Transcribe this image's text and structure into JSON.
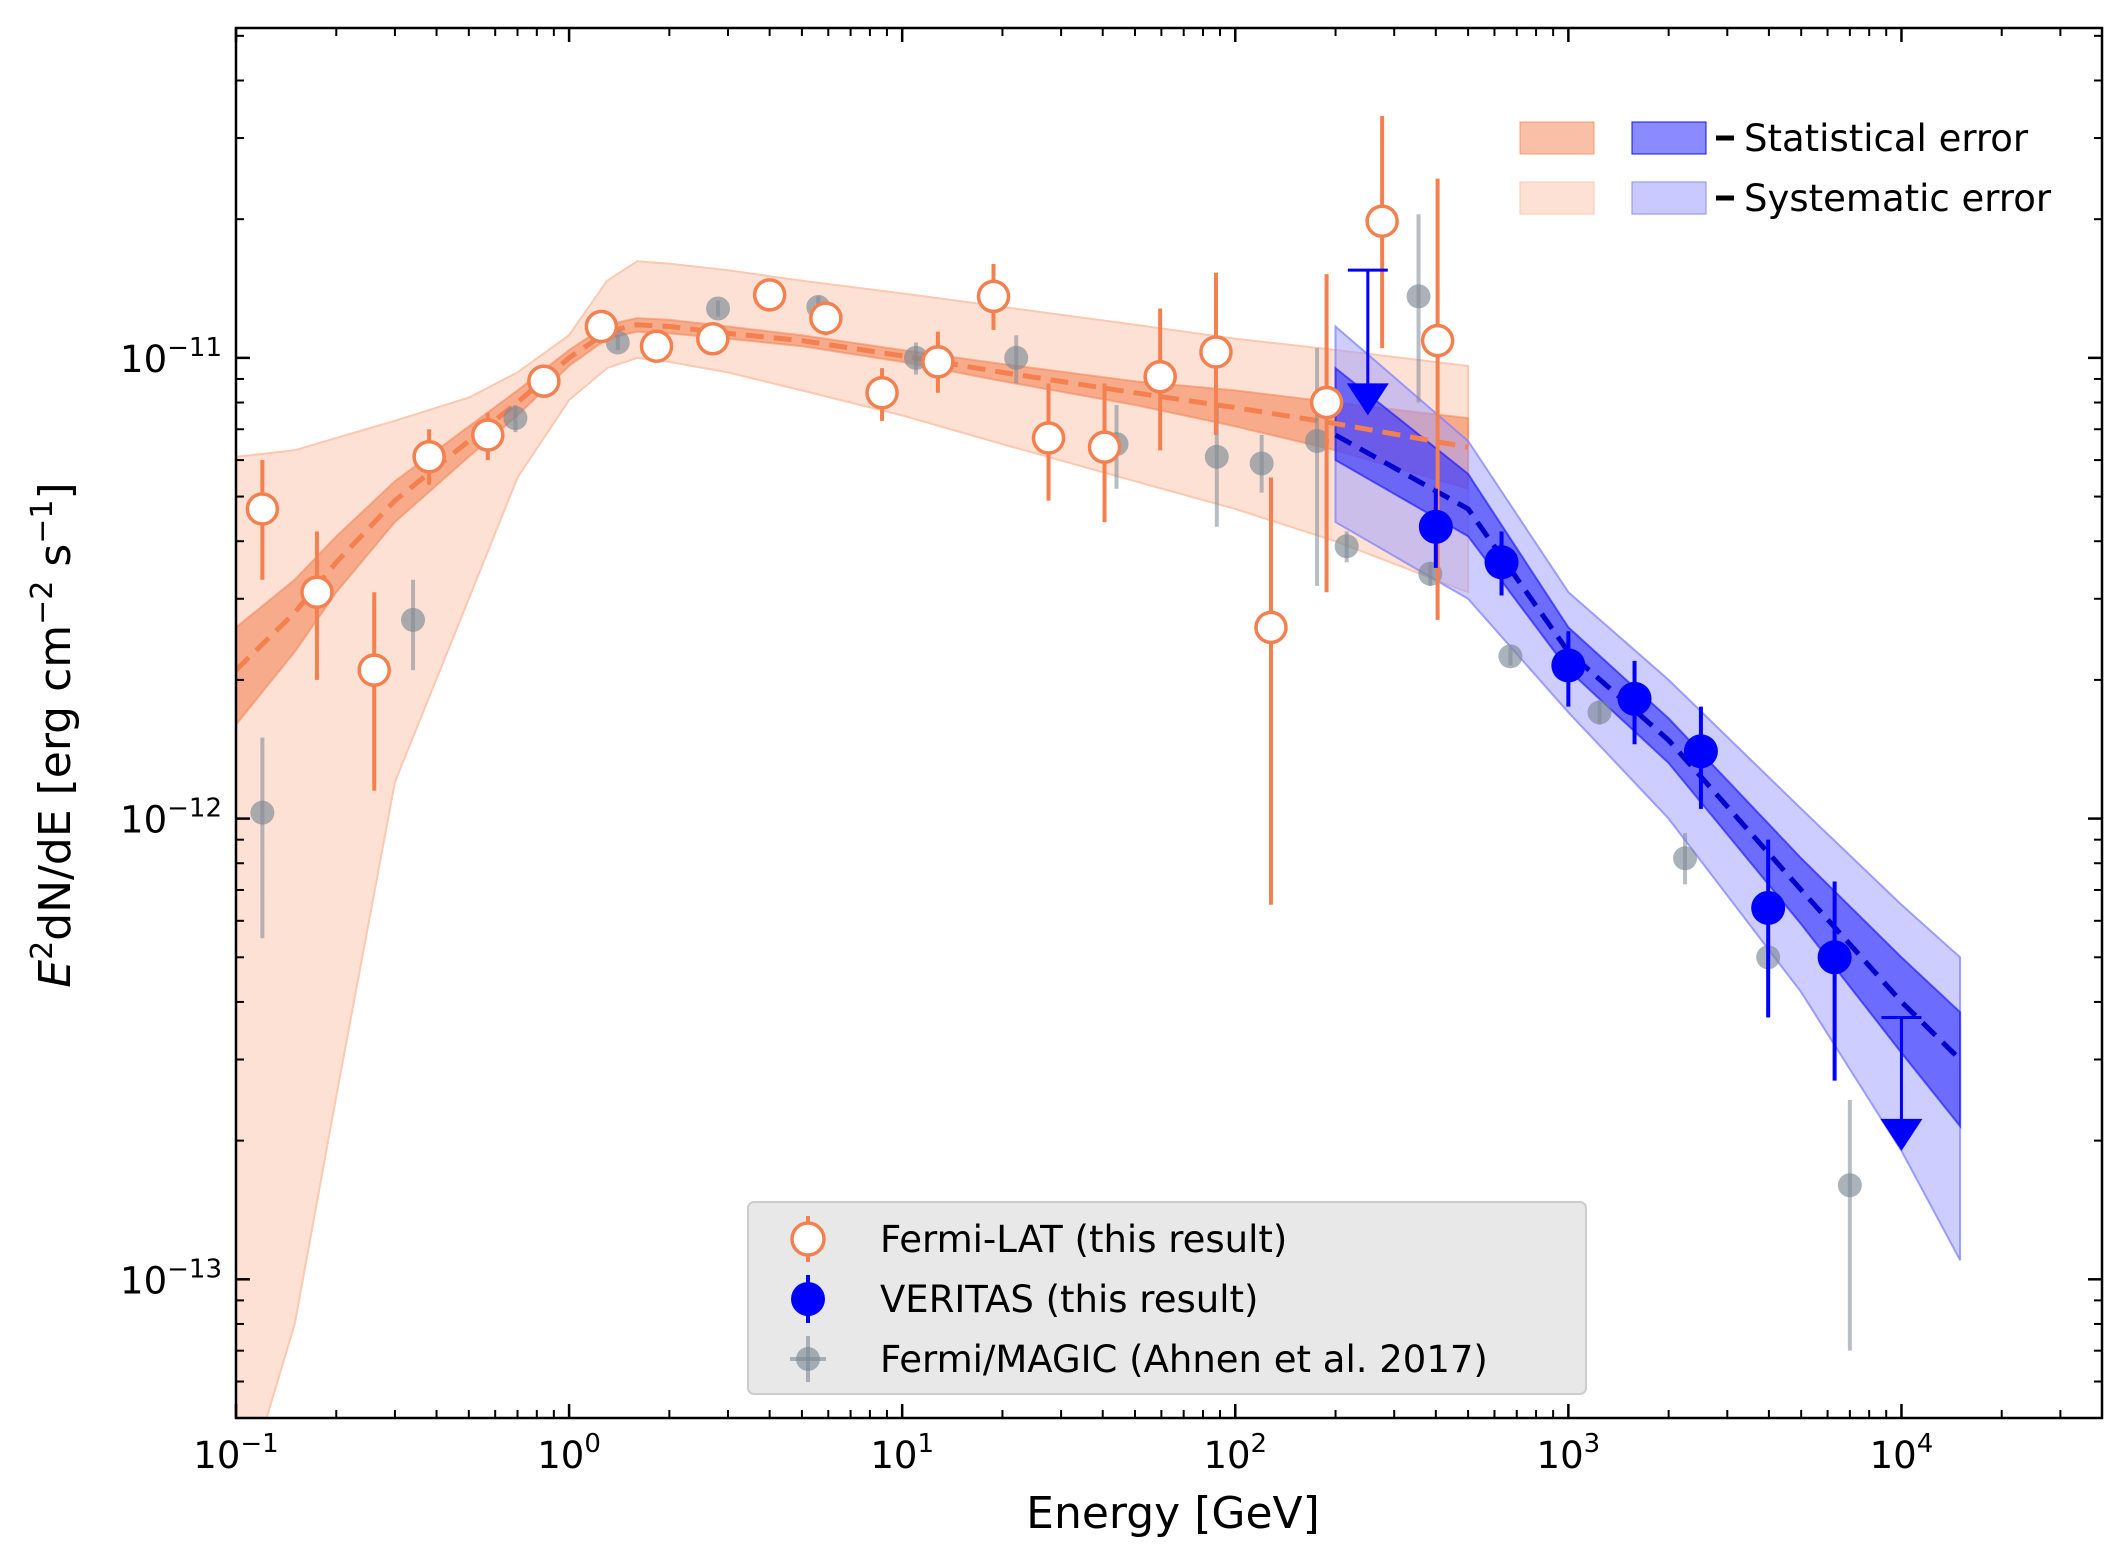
{
  "chart_data": {
    "type": "scatter",
    "xscale": "log",
    "yscale": "log",
    "xlim": [
      0.1,
      40000
    ],
    "ylim": [
      5e-14,
      5.2e-11
    ],
    "xlabel": "Energy [GeV]",
    "ylabel_main": "E",
    "ylabel_rest": "dN/dE [erg cm",
    "ylabel_unit_s": " s",
    "ylabel_close": "]",
    "sup_2": "2",
    "sup_minus2": "−2",
    "sup_minus1": "−1",
    "x_ticks": [
      {
        "value": 0.1,
        "base": "10",
        "exp": "−1"
      },
      {
        "value": 1,
        "base": "10",
        "exp": "0"
      },
      {
        "value": 10,
        "base": "10",
        "exp": "1"
      },
      {
        "value": 100,
        "base": "10",
        "exp": "2"
      },
      {
        "value": 1000,
        "base": "10",
        "exp": "3"
      },
      {
        "value": 10000,
        "base": "10",
        "exp": "4"
      }
    ],
    "y_ticks": [
      {
        "value": 1e-13,
        "base": "10",
        "exp": "−13"
      },
      {
        "value": 1e-12,
        "base": "10",
        "exp": "−12"
      },
      {
        "value": 1e-11,
        "base": "10",
        "exp": "−11"
      }
    ],
    "colors": {
      "fermi": "#f4804f",
      "veritas": "#0000ff",
      "magic": "#7d8895",
      "fermi_stat_band": "#f4804f",
      "fermi_sys_band": "#fcc8b0",
      "veritas_stat_band": "#2b2bff",
      "veritas_sys_band": "#9c9cff"
    },
    "series": [
      {
        "name": "Fermi-LAT (this result)",
        "marker": "open-circle",
        "points": [
          {
            "x": 0.12,
            "y": 4.7e-12,
            "lo": 3.3e-12,
            "hi": 6e-12
          },
          {
            "x": 0.175,
            "y": 3.1e-12,
            "lo": 2e-12,
            "hi": 4.2e-12
          },
          {
            "x": 0.26,
            "y": 2.1e-12,
            "lo": 1.15e-12,
            "hi": 3.1e-12
          },
          {
            "x": 0.38,
            "y": 6.1e-12,
            "lo": 5.3e-12,
            "hi": 7e-12
          },
          {
            "x": 0.57,
            "y": 6.8e-12,
            "lo": 6e-12,
            "hi": 7.6e-12
          },
          {
            "x": 0.84,
            "y": 8.9e-12,
            "lo": 8.3e-12,
            "hi": 9.5e-12
          },
          {
            "x": 1.25,
            "y": 1.17e-11,
            "lo": 1.11e-11,
            "hi": 1.23e-11
          },
          {
            "x": 1.83,
            "y": 1.06e-11,
            "lo": 1e-11,
            "hi": 1.12e-11
          },
          {
            "x": 2.7,
            "y": 1.1e-11,
            "lo": 1.02e-11,
            "hi": 1.18e-11
          },
          {
            "x": 4.0,
            "y": 1.37e-11,
            "lo": 1.28e-11,
            "hi": 1.46e-11
          },
          {
            "x": 5.9,
            "y": 1.22e-11,
            "lo": 1.12e-11,
            "hi": 1.32e-11
          },
          {
            "x": 8.7,
            "y": 8.4e-12,
            "lo": 7.3e-12,
            "hi": 9.5e-12
          },
          {
            "x": 12.8,
            "y": 9.8e-12,
            "lo": 8.4e-12,
            "hi": 1.14e-11
          },
          {
            "x": 18.8,
            "y": 1.36e-11,
            "lo": 1.15e-11,
            "hi": 1.6e-11
          },
          {
            "x": 27.5,
            "y": 6.7e-12,
            "lo": 4.9e-12,
            "hi": 8.8e-12
          },
          {
            "x": 40.5,
            "y": 6.4e-12,
            "lo": 4.4e-12,
            "hi": 8.8e-12
          },
          {
            "x": 59.5,
            "y": 9.1e-12,
            "lo": 6.3e-12,
            "hi": 1.28e-11
          },
          {
            "x": 87.5,
            "y": 1.03e-11,
            "lo": 6.8e-12,
            "hi": 1.53e-11
          },
          {
            "x": 128,
            "y": 2.6e-12,
            "lo": 6.5e-13,
            "hi": 5.5e-12
          },
          {
            "x": 188,
            "y": 8e-12,
            "lo": 3.1e-12,
            "hi": 1.52e-11
          },
          {
            "x": 276,
            "y": 1.98e-11,
            "lo": 1.05e-11,
            "hi": 3.35e-11
          },
          {
            "x": 405,
            "y": 1.09e-11,
            "lo": 2.7e-12,
            "hi": 2.45e-11
          }
        ]
      },
      {
        "name": "VERITAS (this result)",
        "marker": "filled-circle",
        "points": [
          {
            "x": 400,
            "y": 4.3e-12,
            "lo": 3.5e-12,
            "hi": 5.2e-12
          },
          {
            "x": 630,
            "y": 3.6e-12,
            "lo": 3.05e-12,
            "hi": 4.2e-12
          },
          {
            "x": 1000,
            "y": 2.15e-12,
            "lo": 1.75e-12,
            "hi": 2.55e-12
          },
          {
            "x": 1580,
            "y": 1.82e-12,
            "lo": 1.45e-12,
            "hi": 2.2e-12
          },
          {
            "x": 2500,
            "y": 1.4e-12,
            "lo": 1.05e-12,
            "hi": 1.75e-12
          },
          {
            "x": 3980,
            "y": 6.4e-13,
            "lo": 3.7e-13,
            "hi": 9e-13
          },
          {
            "x": 6300,
            "y": 5e-13,
            "lo": 2.7e-13,
            "hi": 7.3e-13
          }
        ],
        "upper_limits": [
          {
            "x": 250,
            "y": 1.55e-11,
            "arrow_to": 7.5e-12
          },
          {
            "x": 10000,
            "y": 3.7e-13,
            "arrow_to": 1.9e-13
          }
        ]
      },
      {
        "name": "Fermi/MAGIC (Ahnen et al. 2017)",
        "marker": "grey-circle",
        "points": [
          {
            "x": 0.12,
            "y": 1.03e-12,
            "lo": 5.5e-13,
            "hi": 1.5e-12
          },
          {
            "x": 0.34,
            "y": 2.7e-12,
            "lo": 2.1e-12,
            "hi": 3.3e-12
          },
          {
            "x": 0.69,
            "y": 7.4e-12,
            "lo": 6.9e-12,
            "hi": 7.9e-12
          },
          {
            "x": 1.4,
            "y": 1.08e-11,
            "lo": 1.04e-11,
            "hi": 1.12e-11
          },
          {
            "x": 2.8,
            "y": 1.28e-11,
            "lo": 1.23e-11,
            "hi": 1.33e-11
          },
          {
            "x": 5.6,
            "y": 1.29e-11,
            "lo": 1.22e-11,
            "hi": 1.36e-11
          },
          {
            "x": 11,
            "y": 1e-11,
            "lo": 9.2e-12,
            "hi": 1.08e-11
          },
          {
            "x": 22,
            "y": 1e-11,
            "lo": 8.8e-12,
            "hi": 1.12e-11
          },
          {
            "x": 44,
            "y": 6.5e-12,
            "lo": 5.2e-12,
            "hi": 7.9e-12
          },
          {
            "x": 88,
            "y": 6.1e-12,
            "lo": 4.3e-12,
            "hi": 7.9e-12
          },
          {
            "x": 120,
            "y": 5.9e-12,
            "lo": 5.1e-12,
            "hi": 6.8e-12
          },
          {
            "x": 176,
            "y": 6.6e-12,
            "lo": 3.2e-12,
            "hi": 1.05e-11
          },
          {
            "x": 216,
            "y": 3.9e-12,
            "lo": 3.6e-12,
            "hi": 4.2e-12
          },
          {
            "x": 355,
            "y": 1.36e-11,
            "lo": 8e-12,
            "hi": 2.05e-11
          },
          {
            "x": 385,
            "y": 3.4e-12,
            "lo": 3.2e-12,
            "hi": 3.6e-12
          },
          {
            "x": 670,
            "y": 2.25e-12,
            "lo": 2.15e-12,
            "hi": 2.35e-12
          },
          {
            "x": 1240,
            "y": 1.7e-12,
            "lo": 1.6e-12,
            "hi": 1.8e-12
          },
          {
            "x": 2240,
            "y": 8.2e-13,
            "lo": 7.2e-13,
            "hi": 9.3e-13
          },
          {
            "x": 3980,
            "y": 5e-13,
            "lo": 4.6e-13,
            "hi": 5.4e-13
          },
          {
            "x": 7000,
            "y": 1.6e-13,
            "lo": 7e-14,
            "hi": 2.45e-13
          }
        ]
      }
    ],
    "fermi_model": {
      "x": [
        0.1,
        0.15,
        0.2,
        0.3,
        0.5,
        0.7,
        1.0,
        1.3,
        1.6,
        2,
        3,
        5,
        10,
        20,
        50,
        100,
        200,
        500
      ],
      "y": [
        2.1e-12,
        2.8e-12,
        3.6e-12,
        4.9e-12,
        6.6e-12,
        8e-12,
        1e-11,
        1.14e-11,
        1.18e-11,
        1.17e-11,
        1.13e-11,
        1.09e-11,
        1.01e-11,
        9.3e-12,
        8.4e-12,
        7.8e-12,
        7.2e-12,
        6.4e-12
      ],
      "stat_lo": [
        1.6e-12,
        2.3e-12,
        3.1e-12,
        4.4e-12,
        6.1e-12,
        7.5e-12,
        9.6e-12,
        1.1e-11,
        1.14e-11,
        1.13e-11,
        1.1e-11,
        1.06e-11,
        9.8e-12,
        8.9e-12,
        7.9e-12,
        7.1e-12,
        6.3e-12,
        5.2e-12
      ],
      "stat_hi": [
        2.6e-12,
        3.3e-12,
        4.1e-12,
        5.4e-12,
        7.1e-12,
        8.5e-12,
        1.04e-11,
        1.18e-11,
        1.22e-11,
        1.21e-11,
        1.17e-11,
        1.12e-11,
        1.04e-11,
        9.7e-12,
        8.9e-12,
        8.5e-12,
        8e-12,
        7.4e-12
      ],
      "sys_lo": [
        3e-14,
        8e-14,
        2.5e-13,
        1.2e-12,
        3e-12,
        5.5e-12,
        8.1e-12,
        9.5e-12,
        1e-11,
        9.8e-12,
        9.3e-12,
        8.5e-12,
        7.5e-12,
        6.5e-12,
        5.4e-12,
        4.7e-12,
        4e-12,
        3.1e-12
      ],
      "sys_hi": [
        6.1e-12,
        6.3e-12,
        6.7e-12,
        7.3e-12,
        8.2e-12,
        9.3e-12,
        1.12e-11,
        1.47e-11,
        1.62e-11,
        1.6e-11,
        1.55e-11,
        1.47e-11,
        1.38e-11,
        1.29e-11,
        1.18e-11,
        1.1e-11,
        1.04e-11,
        9.6e-12
      ]
    },
    "veritas_model": {
      "x": [
        200,
        500,
        1000,
        2000,
        5000,
        10000,
        15000
      ],
      "y": [
        6.8e-12,
        4.7e-12,
        2.3e-12,
        1.48e-12,
        7e-13,
        4e-13,
        3e-13
      ],
      "stat_lo": [
        6e-12,
        4.1e-12,
        2.1e-12,
        1.32e-12,
        5.9e-13,
        3.1e-13,
        2.15e-13
      ],
      "stat_hi": [
        9.5e-12,
        5.6e-12,
        2.6e-12,
        1.65e-12,
        8.2e-13,
        5e-13,
        3.8e-13
      ],
      "sys_lo": [
        4.4e-12,
        3e-12,
        1.7e-12,
        1e-12,
        4.2e-13,
        1.9e-13,
        1.1e-13
      ],
      "sys_hi": [
        1.17e-11,
        6.6e-12,
        3.1e-12,
        2e-12,
        1.05e-12,
        6.5e-13,
        5e-13
      ]
    },
    "band_legend": {
      "statistical": "Statistical error",
      "systematic": "Systematic error"
    },
    "legend": [
      {
        "label": "Fermi-LAT (this result)",
        "marker": "open-circle"
      },
      {
        "label": "VERITAS (this result)",
        "marker": "filled-circle"
      },
      {
        "label": "Fermi/MAGIC (Ahnen et al. 2017)",
        "marker": "grey-circle"
      }
    ],
    "legend_position": "bottom-center",
    "band_legend_position": "top-right",
    "grid": false
  }
}
